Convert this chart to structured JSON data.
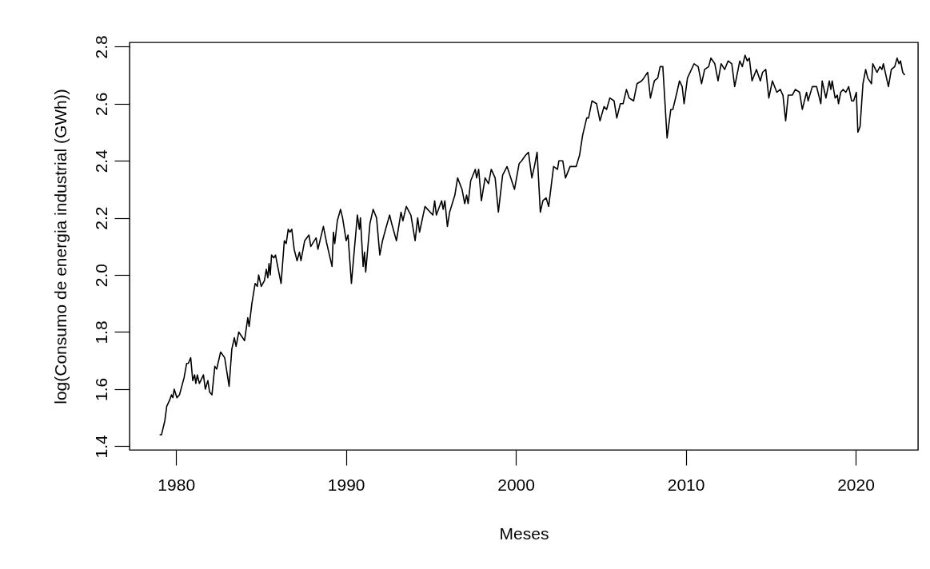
{
  "chart_data": {
    "type": "line",
    "xlabel": "Meses",
    "ylabel": "log(Consumo de energia industrial (GWh))",
    "xlim": [
      1977.26,
      2023.67
    ],
    "xticks": [
      1980,
      1990,
      2000,
      2010,
      2020
    ],
    "ylim": [
      1.387,
      2.815
    ],
    "yticks": [
      1.4,
      1.6,
      1.8,
      {
        "value": 2,
        "label": "2.0"
      },
      2.2,
      2.4,
      2.6,
      2.8
    ],
    "grid": false,
    "line_style": "solid",
    "marker": "none",
    "series": [
      {
        "color": "#000000",
        "x": [
          1979.03,
          1979.14,
          1979.34,
          1979.45,
          1979.61,
          1979.73,
          1979.81,
          1979.89,
          1980.05,
          1980.2,
          1980.47,
          1980.62,
          1980.72,
          1980.86,
          1980.98,
          1981.09,
          1981.16,
          1981.25,
          1981.37,
          1981.61,
          1981.72,
          1981.87,
          1981.97,
          1982.11,
          1982.28,
          1982.39,
          1982.62,
          1982.86,
          1983.12,
          1983.28,
          1983.43,
          1983.53,
          1983.69,
          1984.03,
          1984.22,
          1984.3,
          1984.46,
          1984.65,
          1984.78,
          1984.86,
          1985.01,
          1985.2,
          1985.31,
          1985.4,
          1985.47,
          1985.54,
          1985.62,
          1985.75,
          1985.85,
          1986.18,
          1986.37,
          1986.48,
          1986.6,
          1986.7,
          1986.81,
          1986.95,
          1987.12,
          1987.26,
          1987.35,
          1987.57,
          1987.82,
          1987.93,
          1988.24,
          1988.35,
          1988.67,
          1988.87,
          1989.18,
          1989.26,
          1989.34,
          1989.49,
          1989.68,
          1989.8,
          1990.01,
          1990.12,
          1990.32,
          1990.48,
          1990.67,
          1990.79,
          1990.85,
          1991.01,
          1991.09,
          1991.16,
          1991.41,
          1991.6,
          1991.8,
          1991.99,
          1992.15,
          1992.33,
          1992.57,
          1992.69,
          1992.97,
          1993.24,
          1993.35,
          1993.55,
          1993.82,
          1994.07,
          1994.22,
          1994.33,
          1994.65,
          1995.11,
          1995.22,
          1995.32,
          1995.63,
          1995.72,
          1995.82,
          1995.97,
          1996.1,
          1996.41,
          1996.57,
          1996.83,
          1996.99,
          1997.1,
          1997.19,
          1997.34,
          1997.61,
          1997.69,
          1997.81,
          1997.97,
          1998.19,
          1998.39,
          1998.55,
          1998.78,
          1998.97,
          1999.22,
          1999.48,
          1999.92,
          2000.19,
          2000.34,
          2000.58,
          2000.74,
          2000.94,
          2001.09,
          2001.25,
          2001.44,
          2001.59,
          2001.78,
          2001.93,
          2002.22,
          2002.45,
          2002.53,
          2002.76,
          2002.92,
          2003.19,
          2003.55,
          2003.75,
          2003.93,
          2004.17,
          2004.28,
          2004.48,
          2004.75,
          2004.95,
          2005.19,
          2005.34,
          2005.53,
          2005.78,
          2005.94,
          2006.15,
          2006.31,
          2006.51,
          2006.67,
          2006.93,
          2007.13,
          2007.4,
          2007.53,
          2007.76,
          2007.92,
          2008.15,
          2008.35,
          2008.49,
          2008.65,
          2008.9,
          2009.12,
          2009.24,
          2009.48,
          2009.63,
          2009.79,
          2009.9,
          2010.1,
          2010.49,
          2010.73,
          2010.93,
          2011.11,
          2011.35,
          2011.48,
          2011.71,
          2011.9,
          2012.08,
          2012.29,
          2012.49,
          2012.71,
          2012.88,
          2013.18,
          2013.33,
          2013.49,
          2013.62,
          2013.74,
          2013.9,
          2014.16,
          2014.39,
          2014.52,
          2014.71,
          2014.89,
          2015.1,
          2015.36,
          2015.56,
          2015.72,
          2015.88,
          2016.03,
          2016.27,
          2016.45,
          2016.7,
          2016.86,
          2017.11,
          2017.2,
          2017.45,
          2017.7,
          2017.95,
          2018.03,
          2018.25,
          2018.45,
          2018.54,
          2018.62,
          2018.79,
          2018.92,
          2018.99,
          2019.12,
          2019.26,
          2019.42,
          2019.59,
          2019.76,
          2019.88,
          2020.04,
          2020.13,
          2020.26,
          2020.43,
          2020.59,
          2020.71,
          2020.93,
          2021.01,
          2021.17,
          2021.26,
          2021.43,
          2021.55,
          2021.63,
          2021.93,
          2022.1,
          2022.3,
          2022.44,
          2022.55,
          2022.64,
          2022.77,
          2022.89
        ],
        "values": [
          1.44,
          1.44,
          1.49,
          1.54,
          1.56,
          1.58,
          1.57,
          1.6,
          1.57,
          1.58,
          1.64,
          1.69,
          1.69,
          1.71,
          1.63,
          1.65,
          1.62,
          1.65,
          1.62,
          1.65,
          1.6,
          1.63,
          1.59,
          1.58,
          1.68,
          1.67,
          1.73,
          1.71,
          1.61,
          1.74,
          1.78,
          1.75,
          1.8,
          1.77,
          1.85,
          1.82,
          1.9,
          1.97,
          1.96,
          2.0,
          1.96,
          1.98,
          2.02,
          1.99,
          2.04,
          2.0,
          2.07,
          2.06,
          2.07,
          1.97,
          2.12,
          2.11,
          2.16,
          2.15,
          2.16,
          2.09,
          2.05,
          2.08,
          2.05,
          2.12,
          2.14,
          2.1,
          2.13,
          2.09,
          2.17,
          2.11,
          2.03,
          2.15,
          2.11,
          2.19,
          2.23,
          2.2,
          2.12,
          2.14,
          1.97,
          2.08,
          2.21,
          2.16,
          2.2,
          2.03,
          2.08,
          2.01,
          2.18,
          2.23,
          2.2,
          2.07,
          2.12,
          2.16,
          2.21,
          2.18,
          2.12,
          2.22,
          2.19,
          2.24,
          2.21,
          2.12,
          2.2,
          2.15,
          2.24,
          2.21,
          2.26,
          2.21,
          2.26,
          2.23,
          2.26,
          2.17,
          2.22,
          2.28,
          2.34,
          2.3,
          2.25,
          2.28,
          2.25,
          2.33,
          2.37,
          2.34,
          2.37,
          2.26,
          2.34,
          2.32,
          2.37,
          2.34,
          2.22,
          2.35,
          2.38,
          2.3,
          2.39,
          2.4,
          2.42,
          2.43,
          2.34,
          2.38,
          2.43,
          2.22,
          2.26,
          2.27,
          2.24,
          2.38,
          2.37,
          2.4,
          2.4,
          2.34,
          2.38,
          2.38,
          2.42,
          2.49,
          2.55,
          2.55,
          2.61,
          2.6,
          2.54,
          2.59,
          2.58,
          2.62,
          2.61,
          2.55,
          2.6,
          2.6,
          2.65,
          2.62,
          2.61,
          2.67,
          2.68,
          2.69,
          2.71,
          2.62,
          2.68,
          2.69,
          2.73,
          2.73,
          2.48,
          2.58,
          2.58,
          2.64,
          2.68,
          2.66,
          2.6,
          2.69,
          2.74,
          2.73,
          2.67,
          2.72,
          2.73,
          2.76,
          2.74,
          2.68,
          2.74,
          2.72,
          2.75,
          2.74,
          2.66,
          2.75,
          2.73,
          2.77,
          2.75,
          2.76,
          2.68,
          2.72,
          2.68,
          2.71,
          2.72,
          2.62,
          2.68,
          2.64,
          2.65,
          2.63,
          2.54,
          2.63,
          2.63,
          2.65,
          2.64,
          2.58,
          2.64,
          2.61,
          2.66,
          2.66,
          2.6,
          2.68,
          2.62,
          2.68,
          2.65,
          2.68,
          2.62,
          2.63,
          2.6,
          2.64,
          2.65,
          2.64,
          2.66,
          2.61,
          2.61,
          2.64,
          2.5,
          2.52,
          2.67,
          2.72,
          2.69,
          2.67,
          2.74,
          2.72,
          2.71,
          2.73,
          2.72,
          2.74,
          2.66,
          2.72,
          2.73,
          2.76,
          2.74,
          2.75,
          2.71,
          2.7
        ]
      }
    ]
  }
}
